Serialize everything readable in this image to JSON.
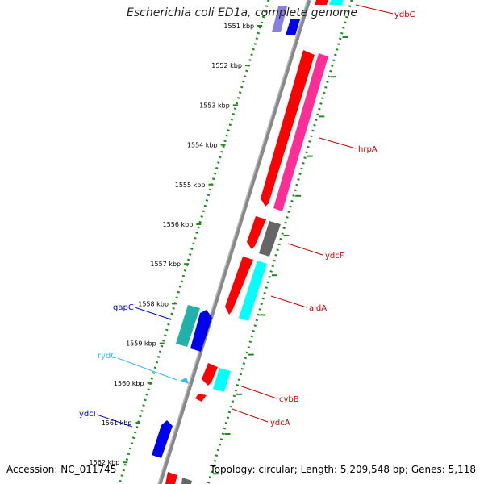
{
  "title": "Escherichia coli ED1a, complete genome",
  "footer": {
    "accession": "Accession: NC_011745",
    "summary": "Topology: circular; Length: 5,209,548 bp; Genes: 5,118"
  },
  "ticks": [
    {
      "label": "1551 kbp",
      "pos": 1551
    },
    {
      "label": "1552 kbp",
      "pos": 1552
    },
    {
      "label": "1553 kbp",
      "pos": 1553
    },
    {
      "label": "1554 kbp",
      "pos": 1554
    },
    {
      "label": "1555 kbp",
      "pos": 1555
    },
    {
      "label": "1556 kbp",
      "pos": 1556
    },
    {
      "label": "1557 kbp",
      "pos": 1557
    },
    {
      "label": "1558 kbp",
      "pos": 1558
    },
    {
      "label": "1559 kbp",
      "pos": 1559
    },
    {
      "label": "1560 kbp",
      "pos": 1560
    },
    {
      "label": "1561 kbp",
      "pos": 1561
    },
    {
      "label": "1562 kbp",
      "pos": 1562
    }
  ],
  "gene_labels": [
    {
      "name": "ydbC",
      "color": "#cc0000"
    },
    {
      "name": "hrpA",
      "color": "#cc0000"
    },
    {
      "name": "ydcF",
      "color": "#cc0000"
    },
    {
      "name": "aldA",
      "color": "#cc0000"
    },
    {
      "name": "gapC",
      "color": "#0000cc"
    },
    {
      "name": "rydC",
      "color": "#33bbee"
    },
    {
      "name": "cybB",
      "color": "#cc0000"
    },
    {
      "name": "ydcA",
      "color": "#cc0000"
    },
    {
      "name": "ydcI",
      "color": "#0000cc"
    }
  ],
  "colors": {
    "forward_cds": "#ff0000",
    "forward_paralog": "#ff2d96",
    "grey_feature": "#666666",
    "cyan_feature": "#00ffff",
    "teal_feature": "#20b2aa",
    "reverse_cds": "#0000ee",
    "rna": "#33bbee",
    "tick_dots": "#228822",
    "backbone": "#888888"
  }
}
